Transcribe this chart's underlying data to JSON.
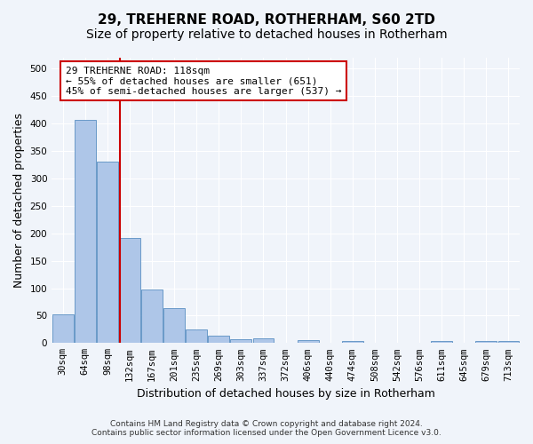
{
  "title": "29, TREHERNE ROAD, ROTHERHAM, S60 2TD",
  "subtitle": "Size of property relative to detached houses in Rotherham",
  "xlabel": "Distribution of detached houses by size in Rotherham",
  "ylabel": "Number of detached properties",
  "footer_line1": "Contains HM Land Registry data © Crown copyright and database right 2024.",
  "footer_line2": "Contains public sector information licensed under the Open Government Licence v3.0.",
  "bin_labels": [
    "30sqm",
    "64sqm",
    "98sqm",
    "132sqm",
    "167sqm",
    "201sqm",
    "235sqm",
    "269sqm",
    "303sqm",
    "337sqm",
    "372sqm",
    "406sqm",
    "440sqm",
    "474sqm",
    "508sqm",
    "542sqm",
    "576sqm",
    "611sqm",
    "645sqm",
    "679sqm",
    "713sqm"
  ],
  "bar_values": [
    52,
    407,
    330,
    192,
    97,
    63,
    24,
    13,
    7,
    9,
    0,
    5,
    0,
    3,
    0,
    0,
    0,
    3,
    0,
    3,
    3
  ],
  "bar_color": "#aec6e8",
  "bar_edge_color": "#5a8fc2",
  "vline_x_index": 2.55,
  "vline_color": "#cc0000",
  "annotation_text": "29 TREHERNE ROAD: 118sqm\n← 55% of detached houses are smaller (651)\n45% of semi-detached houses are larger (537) →",
  "annotation_box_color": "#ffffff",
  "annotation_box_edge_color": "#cc0000",
  "ylim": [
    0,
    520
  ],
  "yticks": [
    0,
    50,
    100,
    150,
    200,
    250,
    300,
    350,
    400,
    450,
    500
  ],
  "background_color": "#f0f4fa",
  "grid_color": "#ffffff",
  "title_fontsize": 11,
  "subtitle_fontsize": 10,
  "axis_label_fontsize": 9,
  "tick_fontsize": 7.5,
  "annotation_fontsize": 8
}
